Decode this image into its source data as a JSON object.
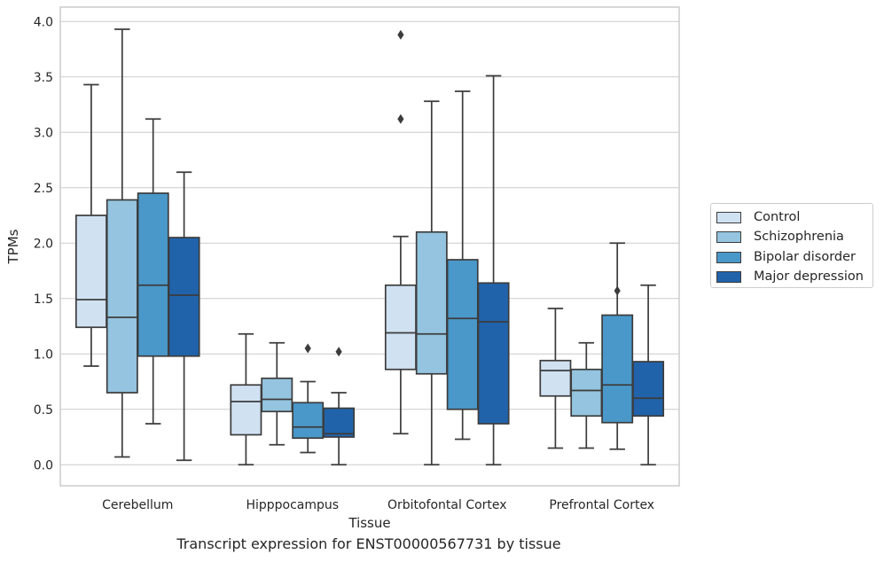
{
  "chart_data": {
    "type": "box",
    "title": "",
    "caption": "Transcript expression for ENST00000567731 by tissue",
    "xlabel": "Tissue",
    "ylabel": "TPMs",
    "ylim": [
      -0.19,
      4.13
    ],
    "yticks": [
      "0.0",
      "0.5",
      "1.0",
      "1.5",
      "2.0",
      "2.5",
      "3.0",
      "3.5",
      "4.0"
    ],
    "grid": "horizontal",
    "legend_position": "right",
    "categories": [
      "Cerebellum",
      "Hipppocampus",
      "Orbitofontal Cortex",
      "Prefrontal Cortex"
    ],
    "series": [
      {
        "name": "Control",
        "color": "#d0e1f2",
        "boxes": [
          {
            "whisker_low": 0.89,
            "q1": 1.24,
            "median": 1.49,
            "q3": 2.25,
            "whisker_high": 3.43,
            "outliers": []
          },
          {
            "whisker_low": 0.0,
            "q1": 0.27,
            "median": 0.57,
            "q3": 0.72,
            "whisker_high": 1.18,
            "outliers": []
          },
          {
            "whisker_low": 0.28,
            "q1": 0.86,
            "median": 1.19,
            "q3": 1.62,
            "whisker_high": 2.06,
            "outliers": [
              3.12,
              3.88
            ]
          },
          {
            "whisker_low": 0.15,
            "q1": 0.62,
            "median": 0.85,
            "q3": 0.94,
            "whisker_high": 1.41,
            "outliers": []
          }
        ]
      },
      {
        "name": "Schizophrenia",
        "color": "#94c4df",
        "boxes": [
          {
            "whisker_low": 0.07,
            "q1": 0.65,
            "median": 1.33,
            "q3": 2.39,
            "whisker_high": 3.93,
            "outliers": []
          },
          {
            "whisker_low": 0.18,
            "q1": 0.48,
            "median": 0.59,
            "q3": 0.78,
            "whisker_high": 1.1,
            "outliers": []
          },
          {
            "whisker_low": 0.0,
            "q1": 0.82,
            "median": 1.18,
            "q3": 2.1,
            "whisker_high": 3.28,
            "outliers": []
          },
          {
            "whisker_low": 0.15,
            "q1": 0.44,
            "median": 0.67,
            "q3": 0.86,
            "whisker_high": 1.1,
            "outliers": []
          }
        ]
      },
      {
        "name": "Bipolar disorder",
        "color": "#4a98c9",
        "boxes": [
          {
            "whisker_low": 0.37,
            "q1": 0.98,
            "median": 1.62,
            "q3": 2.45,
            "whisker_high": 3.12,
            "outliers": []
          },
          {
            "whisker_low": 0.11,
            "q1": 0.24,
            "median": 0.34,
            "q3": 0.56,
            "whisker_high": 0.75,
            "outliers": [
              1.05
            ]
          },
          {
            "whisker_low": 0.23,
            "q1": 0.5,
            "median": 1.32,
            "q3": 1.85,
            "whisker_high": 3.37,
            "outliers": []
          },
          {
            "whisker_low": 0.14,
            "q1": 0.38,
            "median": 0.72,
            "q3": 1.35,
            "whisker_high": 2.0,
            "outliers": [
              1.57
            ]
          }
        ]
      },
      {
        "name": "Major depression",
        "color": "#2163aa",
        "boxes": [
          {
            "whisker_low": 0.04,
            "q1": 0.98,
            "median": 1.53,
            "q3": 2.05,
            "whisker_high": 2.64,
            "outliers": []
          },
          {
            "whisker_low": 0.0,
            "q1": 0.25,
            "median": 0.28,
            "q3": 0.51,
            "whisker_high": 0.65,
            "outliers": [
              1.02
            ]
          },
          {
            "whisker_low": 0.0,
            "q1": 0.37,
            "median": 1.29,
            "q3": 1.64,
            "whisker_high": 3.51,
            "outliers": []
          },
          {
            "whisker_low": 0.0,
            "q1": 0.44,
            "median": 0.6,
            "q3": 0.93,
            "whisker_high": 1.62,
            "outliers": []
          }
        ]
      }
    ]
  }
}
